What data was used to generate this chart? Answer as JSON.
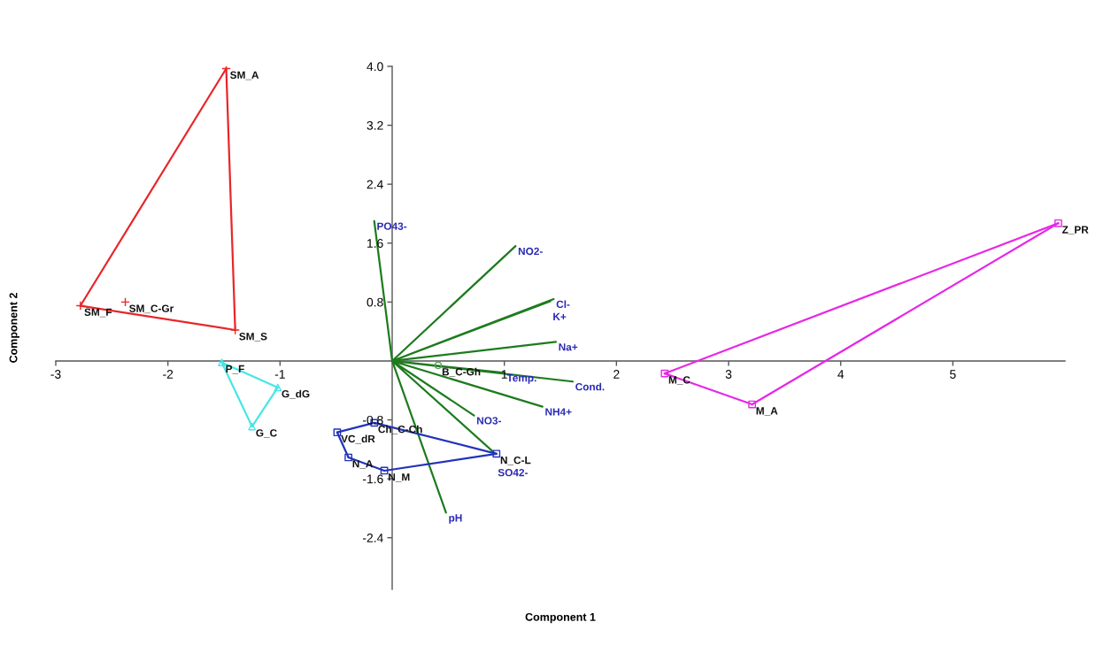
{
  "chart_data": {
    "type": "scatter",
    "xlabel": "Component 1",
    "ylabel": "Component 2",
    "xlim": [
      -3,
      6
    ],
    "ylim": [
      -3.1,
      4.0
    ],
    "xticks": [
      -3,
      -2,
      -1,
      1,
      2,
      3,
      4,
      5
    ],
    "yticks": [
      {
        "value": 4.0,
        "label": "4.0"
      },
      3.2,
      2.4,
      1.6,
      0.8,
      -0.8,
      -1.6,
      -2.4
    ],
    "grid": false,
    "legend": false,
    "series": [
      {
        "type": "line",
        "color": "#1e7b1e",
        "x": [
          0,
          -0.16,
          null,
          0,
          1.1,
          null,
          0,
          1.44,
          null,
          0,
          1.41,
          null,
          0,
          1.46,
          null,
          0,
          1.0,
          null,
          0,
          1.61,
          null,
          0,
          1.34,
          null,
          0,
          0.73,
          null,
          0,
          0.92,
          null,
          0,
          0.48
        ],
        "values": [
          0,
          1.9,
          null,
          0,
          1.56,
          null,
          0,
          0.84,
          null,
          0,
          0.81,
          null,
          0,
          0.26,
          null,
          0,
          -0.16,
          null,
          0,
          -0.28,
          null,
          0,
          -0.62,
          null,
          0,
          -0.74,
          null,
          0,
          -1.26,
          null,
          0,
          -2.06
        ],
        "value_labels": [
          null,
          "PO43-",
          null,
          null,
          "NO2-",
          null,
          null,
          "Cl-",
          null,
          null,
          "K+",
          null,
          null,
          "Na+",
          null,
          null,
          "Temp.",
          null,
          null,
          "Cond.",
          null,
          null,
          "NH4+",
          null,
          null,
          "NO3-",
          null,
          null,
          "SO42-",
          null,
          null,
          "pH"
        ]
      },
      {
        "type": "line",
        "color": "#e8262a",
        "x": [
          -1.48,
          -1.4
        ],
        "values": [
          3.97,
          0.42
        ]
      },
      {
        "type": "line",
        "color": "#e8262a",
        "x": [
          -1.4,
          -2.78
        ],
        "values": [
          0.42,
          0.75
        ]
      },
      {
        "type": "line",
        "color": "#e8262a",
        "x": [
          -2.78,
          -1.48
        ],
        "values": [
          0.75,
          3.97
        ]
      },
      {
        "type": "line",
        "color": "#48e6e6",
        "x": [
          -1.52,
          -1.02
        ],
        "values": [
          -0.02,
          -0.36
        ]
      },
      {
        "type": "line",
        "color": "#48e6e6",
        "x": [
          -1.02,
          -1.25
        ],
        "values": [
          -0.36,
          -0.89
        ]
      },
      {
        "type": "line",
        "color": "#48e6e6",
        "x": [
          -1.25,
          -1.52
        ],
        "values": [
          -0.89,
          -0.02
        ]
      },
      {
        "type": "line",
        "color": "#2233bb",
        "x": [
          -0.49,
          -0.16
        ],
        "values": [
          -0.97,
          -0.84
        ]
      },
      {
        "type": "line",
        "color": "#2233bb",
        "x": [
          -0.16,
          0.93
        ],
        "values": [
          -0.84,
          -1.26
        ]
      },
      {
        "type": "line",
        "color": "#2233bb",
        "x": [
          0.93,
          -0.07
        ],
        "values": [
          -1.26,
          -1.49
        ]
      },
      {
        "type": "line",
        "color": "#2233bb",
        "x": [
          -0.07,
          -0.39
        ],
        "values": [
          -1.49,
          -1.31
        ]
      },
      {
        "type": "line",
        "color": "#2233bb",
        "x": [
          -0.39,
          -0.49
        ],
        "values": [
          -1.31,
          -0.97
        ]
      },
      {
        "type": "line",
        "color": "#e628e6",
        "x": [
          2.43,
          5.94
        ],
        "values": [
          -0.17,
          1.87
        ]
      },
      {
        "type": "line",
        "color": "#e628e6",
        "x": [
          5.94,
          3.21
        ],
        "values": [
          1.87,
          -0.59
        ]
      },
      {
        "type": "line",
        "color": "#e628e6",
        "x": [
          3.21,
          2.43
        ],
        "values": [
          -0.59,
          -0.17
        ]
      },
      {
        "color": "#e8262a",
        "marker": "cross",
        "x": [
          -1.48,
          -2.78,
          -2.38,
          -1.4
        ],
        "values": [
          3.97,
          0.75,
          0.8,
          0.42
        ]
      },
      {
        "color": "#48e6e6",
        "marker": "triangle",
        "x": [
          -1.52,
          -1.02,
          -1.25
        ],
        "values": [
          -0.02,
          -0.36,
          -0.89
        ]
      },
      {
        "color": "#2233bb",
        "marker": "square",
        "x": [
          -0.49,
          -0.16,
          -0.39,
          -0.07,
          0.93
        ],
        "values": [
          -0.97,
          -0.84,
          -1.31,
          -1.49,
          -1.26
        ]
      },
      {
        "color": "#e628e6",
        "marker": "square",
        "x": [
          2.43,
          3.21,
          5.94
        ],
        "values": [
          -0.17,
          -0.59,
          1.87
        ]
      },
      {
        "color": "#5f9f5f",
        "marker": "circle",
        "x": [
          0.41
        ],
        "values": [
          -0.06
        ]
      }
    ],
    "annotations": [
      {
        "text": "SM_A",
        "x": -1.48,
        "y": 3.97
      },
      {
        "text": "SM_F",
        "x": -2.78,
        "y": 0.75
      },
      {
        "text": "SM_C-Gr",
        "x": -2.38,
        "y": 0.8
      },
      {
        "text": "SM_S",
        "x": -1.4,
        "y": 0.42
      },
      {
        "text": "P_F",
        "x": -1.52,
        "y": -0.02
      },
      {
        "text": "G_dG",
        "x": -1.02,
        "y": -0.36
      },
      {
        "text": "G_C",
        "x": -1.25,
        "y": -0.89
      },
      {
        "text": "VC_dR",
        "x": -0.49,
        "y": -0.97
      },
      {
        "text": "Ch_C-Ch",
        "x": -0.16,
        "y": -0.84
      },
      {
        "text": "N_A",
        "x": -0.39,
        "y": -1.31
      },
      {
        "text": "N_M",
        "x": -0.07,
        "y": -1.49
      },
      {
        "text": "N_C-L",
        "x": 0.93,
        "y": -1.26
      },
      {
        "text": "M_C",
        "x": 2.43,
        "y": -0.17
      },
      {
        "text": "M_A",
        "x": 3.21,
        "y": -0.59
      },
      {
        "text": "Z_PR",
        "x": 5.94,
        "y": 1.87
      },
      {
        "text": "B_C-Gh",
        "x": 0.41,
        "y": -0.06
      }
    ]
  }
}
